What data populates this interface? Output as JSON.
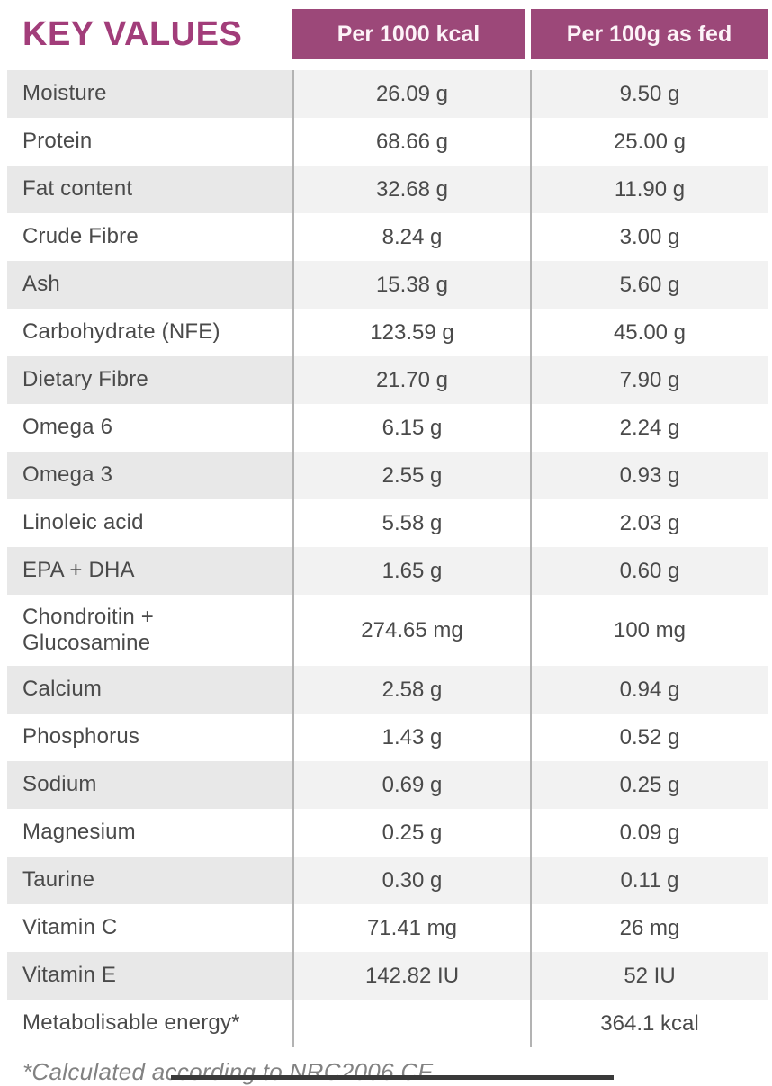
{
  "title": "KEY VALUES",
  "columns": [
    "Per 1000 kcal",
    "Per 100g as fed"
  ],
  "rows": [
    {
      "label": "Moisture",
      "per_1000_kcal": "26.09 g",
      "per_100g_as_fed": "9.50 g"
    },
    {
      "label": "Protein",
      "per_1000_kcal": "68.66 g",
      "per_100g_as_fed": "25.00 g"
    },
    {
      "label": "Fat content",
      "per_1000_kcal": "32.68 g",
      "per_100g_as_fed": "11.90 g"
    },
    {
      "label": "Crude Fibre",
      "per_1000_kcal": "8.24 g",
      "per_100g_as_fed": "3.00 g"
    },
    {
      "label": "Ash",
      "per_1000_kcal": "15.38 g",
      "per_100g_as_fed": "5.60 g"
    },
    {
      "label": "Carbohydrate (NFE)",
      "per_1000_kcal": "123.59 g",
      "per_100g_as_fed": "45.00 g"
    },
    {
      "label": "Dietary Fibre",
      "per_1000_kcal": "21.70 g",
      "per_100g_as_fed": "7.90 g"
    },
    {
      "label": "Omega 6",
      "per_1000_kcal": "6.15 g",
      "per_100g_as_fed": "2.24 g"
    },
    {
      "label": "Omega 3",
      "per_1000_kcal": "2.55 g",
      "per_100g_as_fed": "0.93 g"
    },
    {
      "label": "Linoleic acid",
      "per_1000_kcal": "5.58 g",
      "per_100g_as_fed": "2.03 g"
    },
    {
      "label": "EPA + DHA",
      "per_1000_kcal": "1.65 g",
      "per_100g_as_fed": "0.60 g"
    },
    {
      "label": "Chondroitin +\nGlucosamine",
      "per_1000_kcal": "274.65 mg",
      "per_100g_as_fed": "100 mg"
    },
    {
      "label": "Calcium",
      "per_1000_kcal": "2.58 g",
      "per_100g_as_fed": "0.94 g"
    },
    {
      "label": "Phosphorus",
      "per_1000_kcal": "1.43 g",
      "per_100g_as_fed": "0.52 g"
    },
    {
      "label": "Sodium",
      "per_1000_kcal": "0.69 g",
      "per_100g_as_fed": "0.25 g"
    },
    {
      "label": "Magnesium",
      "per_1000_kcal": "0.25 g",
      "per_100g_as_fed": "0.09 g"
    },
    {
      "label": "Taurine",
      "per_1000_kcal": "0.30 g",
      "per_100g_as_fed": "0.11 g"
    },
    {
      "label": "Vitamin C",
      "per_1000_kcal": "71.41 mg",
      "per_100g_as_fed": "26 mg"
    },
    {
      "label": "Vitamin E",
      "per_1000_kcal": "142.82 IU",
      "per_100g_as_fed": "52 IU"
    },
    {
      "label": "Metabolisable energy*",
      "per_1000_kcal": "",
      "per_100g_as_fed": "364.1 kcal"
    }
  ],
  "footnote": "*Calculated according to NRC2006 CF.",
  "colors": {
    "accent": "#9c4879",
    "title": "#a23d7a",
    "header_text": "#fdf3f8",
    "text": "#4a4a4a",
    "divider": "#b3b3b3",
    "row_label_shade": "#e8e8e8",
    "row_value_shade": "#f2f2f2",
    "footnote": "#828282",
    "bottom_bar": "#3a3a3a"
  }
}
